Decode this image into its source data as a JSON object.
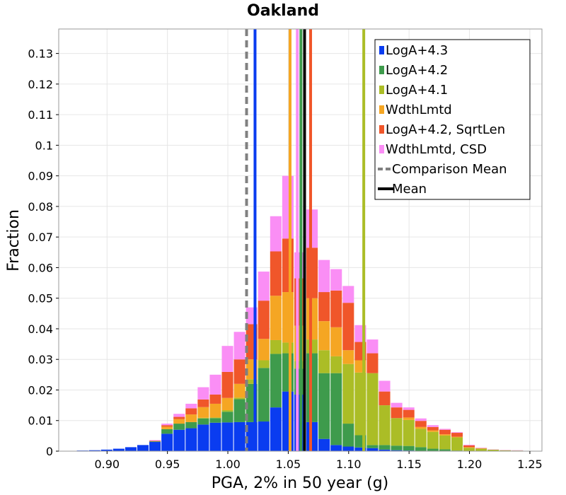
{
  "chart_data": {
    "type": "bar",
    "title": "Oakland",
    "xlabel": "PGA, 2% in 50 year (g)",
    "ylabel": "Fraction",
    "xlim": [
      0.86,
      1.26
    ],
    "ylim": [
      0,
      0.138
    ],
    "bin_width": 0.01,
    "stacked": true,
    "grid": true,
    "legend_position": "top-right",
    "x_ticks": [
      0.9,
      0.95,
      1.0,
      1.05,
      1.1,
      1.15,
      1.2,
      1.25
    ],
    "x_tick_labels": [
      "0.90",
      "0.95",
      "1.00",
      "1.05",
      "1.10",
      "1.15",
      "1.20",
      "1.25"
    ],
    "y_ticks": [
      0,
      0.01,
      0.02,
      0.03,
      0.04,
      0.05,
      0.06,
      0.07,
      0.08,
      0.09,
      0.1,
      0.11,
      0.12,
      0.13
    ],
    "y_tick_labels": [
      "0",
      "0.01",
      "0.02",
      "0.03",
      "0.04",
      "0.05",
      "0.06",
      "0.07",
      "0.08",
      "0.09",
      "0.1",
      "0.11",
      "0.12",
      "0.13"
    ],
    "bin_centers": [
      0.88,
      0.89,
      0.9,
      0.91,
      0.92,
      0.93,
      0.94,
      0.95,
      0.96,
      0.97,
      0.98,
      0.99,
      1.0,
      1.01,
      1.02,
      1.03,
      1.04,
      1.05,
      1.06,
      1.07,
      1.08,
      1.09,
      1.1,
      1.11,
      1.12,
      1.13,
      1.14,
      1.15,
      1.16,
      1.17,
      1.18,
      1.19,
      1.2,
      1.21,
      1.22,
      1.23,
      1.24
    ],
    "series": [
      {
        "name": "LogA+4.3",
        "color": "#0a3cf0",
        "values": [
          0.0002,
          0.0003,
          0.0005,
          0.0008,
          0.0013,
          0.002,
          0.003,
          0.0057,
          0.007,
          0.0075,
          0.0087,
          0.0093,
          0.0094,
          0.0095,
          0.0095,
          0.0097,
          0.0143,
          0.0195,
          0.0185,
          0.0095,
          0.004,
          0.002,
          0.0015,
          0.0012,
          0.001,
          0.0005,
          0.0003,
          0.0002,
          0.0001,
          0,
          0,
          0,
          0,
          0,
          0,
          0,
          0
        ]
      },
      {
        "name": "LogA+4.2",
        "color": "#3e9b4c",
        "values": [
          0,
          0,
          0,
          0,
          0,
          0,
          0.0002,
          0.0015,
          0.002,
          0.002,
          0.002,
          0.0015,
          0.0035,
          0.0075,
          0.0125,
          0.0175,
          0.0175,
          0.0125,
          0.0085,
          0.0225,
          0.0215,
          0.0235,
          0.0075,
          0.004,
          0.001,
          0.0015,
          0.0015,
          0.0015,
          0.0012,
          0.0008,
          0.0006,
          0.0002,
          0,
          0,
          0,
          0,
          0
        ]
      },
      {
        "name": "LogA+4.1",
        "color": "#abbd26",
        "values": [
          0,
          0,
          0,
          0,
          0,
          0,
          0,
          0,
          0,
          0,
          0.0002,
          0.0002,
          0.0005,
          0.0005,
          0.0015,
          0.0025,
          0.0045,
          0.0035,
          0.0025,
          0.0045,
          0.0075,
          0.0055,
          0.0195,
          0.0205,
          0.0235,
          0.013,
          0.009,
          0.0085,
          0.006,
          0.0055,
          0.0045,
          0.0043,
          0.0011,
          0.0008,
          0.0005,
          0.0003,
          0.0002
        ]
      },
      {
        "name": "WdthLmtd",
        "color": "#f5a623",
        "values": [
          0,
          0,
          0,
          0,
          0,
          0,
          0,
          0.0008,
          0.0015,
          0.0025,
          0.0035,
          0.0045,
          0.004,
          0.0045,
          0.0065,
          0.007,
          0.0145,
          0.0165,
          0.0115,
          0.0135,
          0.0095,
          0.0095,
          0.0045,
          0.004,
          0.0,
          0.0,
          0.0,
          0.0008,
          0.0006,
          0.0005,
          0.0004,
          0.0002,
          0.0002,
          0.0001,
          0,
          0,
          0
        ]
      },
      {
        "name": "LogA+4.2, SqrtLen",
        "color": "#f0562a",
        "values": [
          0,
          0,
          0,
          0,
          0,
          0,
          0.0002,
          0.0005,
          0.0007,
          0.002,
          0.0025,
          0.003,
          0.0085,
          0.008,
          0.0115,
          0.0125,
          0.0145,
          0.0175,
          0.0155,
          0.0165,
          0.0095,
          0.012,
          0.0155,
          0.006,
          0.0065,
          0.0045,
          0.0035,
          0.0025,
          0.002,
          0.0011,
          0.0015,
          0.0013,
          0.0006,
          0.0001,
          0,
          0,
          0
        ]
      },
      {
        "name": "WdthLmtd, CSD",
        "color": "#fa8ef5",
        "values": [
          0,
          0,
          0,
          0,
          0,
          0,
          0.0002,
          0.0005,
          0.001,
          0.0015,
          0.004,
          0.0065,
          0.0085,
          0.009,
          0.0055,
          0.0095,
          0.0115,
          0.0205,
          0.0085,
          0.0125,
          0.0105,
          0.007,
          0.0055,
          0.0055,
          0.0045,
          0.0035,
          0.0015,
          0.0008,
          0.0008,
          0.0006,
          0.0003,
          0.0002,
          0.0002,
          0.0001,
          0.0001,
          0.0001,
          0.0001
        ]
      }
    ],
    "vertical_lines": [
      {
        "name": "LogA+4.3",
        "x": 1.0225,
        "color": "#0a3cf0",
        "style": "solid"
      },
      {
        "name": "LogA+4.2",
        "x": 1.0605,
        "color": "#3e9b4c",
        "style": "solid"
      },
      {
        "name": "LogA+4.1",
        "x": 1.1125,
        "color": "#abbd26",
        "style": "solid"
      },
      {
        "name": "WdthLmtd",
        "x": 1.0515,
        "color": "#f5a623",
        "style": "solid"
      },
      {
        "name": "LogA+4.2, SqrtLen",
        "x": 1.0685,
        "color": "#f0562a",
        "style": "solid"
      },
      {
        "name": "WdthLmtd, CSD",
        "x": 1.0575,
        "color": "#fa8ef5",
        "style": "solid"
      },
      {
        "name": "Comparison Mean",
        "x": 1.0155,
        "color": "#808080",
        "style": "dashed"
      },
      {
        "name": "Mean",
        "x": 1.0635,
        "color": "#000000",
        "style": "solid"
      }
    ],
    "legend": [
      {
        "label": "LogA+4.3",
        "color": "#0a3cf0",
        "kind": "box"
      },
      {
        "label": "LogA+4.2",
        "color": "#3e9b4c",
        "kind": "box"
      },
      {
        "label": "LogA+4.1",
        "color": "#abbd26",
        "kind": "box"
      },
      {
        "label": "WdthLmtd",
        "color": "#f5a623",
        "kind": "box"
      },
      {
        "label": "LogA+4.2, SqrtLen",
        "color": "#f0562a",
        "kind": "box"
      },
      {
        "label": "WdthLmtd, CSD",
        "color": "#fa8ef5",
        "kind": "box"
      },
      {
        "label": "Comparison Mean",
        "color": "#808080",
        "kind": "dashed"
      },
      {
        "label": "Mean",
        "color": "#000000",
        "kind": "line"
      }
    ]
  }
}
